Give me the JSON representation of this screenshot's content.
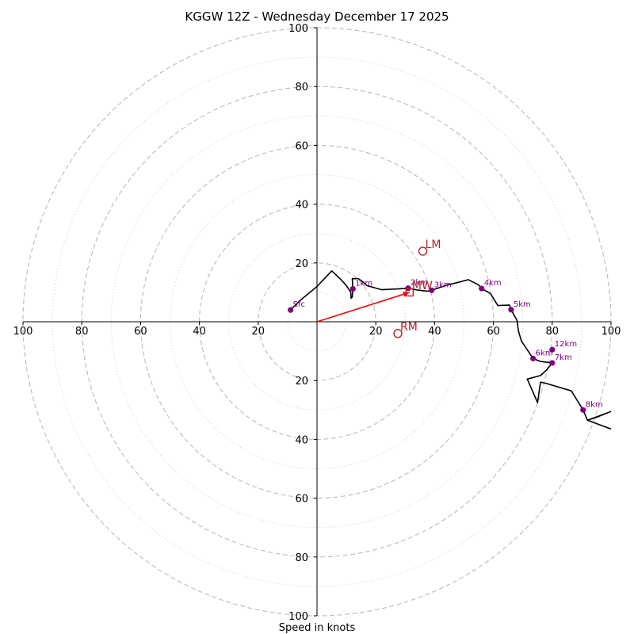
{
  "chart_data": {
    "type": "hodograph",
    "title": "KGGW 12Z - Wednesday December 17 2025",
    "xlabel": "Speed in knots",
    "ylabel": "",
    "xlim": [
      -100,
      100
    ],
    "ylim": [
      -100,
      100
    ],
    "ring_major": [
      20,
      40,
      60,
      80,
      100
    ],
    "ring_minor": [
      10,
      30,
      50,
      70,
      90
    ],
    "axis_tick_labels": [
      "100",
      "80",
      "60",
      "40",
      "20",
      "20",
      "40",
      "60",
      "80",
      "100"
    ],
    "colors": {
      "trace": "#000000",
      "height_marker": "#800080",
      "storm_motion": "#b22222",
      "shear_vector": "#ff0000",
      "grid": "#bbbbbb"
    },
    "trace_uv": [
      [
        -9,
        4
      ],
      [
        -6,
        7
      ],
      [
        0,
        12
      ],
      [
        5,
        17.3
      ],
      [
        8,
        14.5
      ],
      [
        10,
        12.3
      ],
      [
        11.5,
        10
      ],
      [
        11.6,
        8
      ],
      [
        12,
        8.4
      ],
      [
        12.2,
        11.2
      ],
      [
        12,
        14.6
      ],
      [
        14,
        14.7
      ],
      [
        15.3,
        13.8
      ],
      [
        17,
        12.3
      ],
      [
        22,
        10.9
      ],
      [
        28,
        11.2
      ],
      [
        31,
        11.4
      ],
      [
        34,
        10.8
      ],
      [
        37.5,
        10.4
      ],
      [
        39,
        10.7
      ],
      [
        44,
        12.4
      ],
      [
        48,
        13.4
      ],
      [
        51.5,
        14.3
      ],
      [
        55,
        12.5
      ],
      [
        56,
        11.3
      ],
      [
        59,
        9.6
      ],
      [
        61.5,
        5.5
      ],
      [
        65.5,
        5.7
      ],
      [
        66,
        4.1
      ],
      [
        68,
        0.5
      ],
      [
        68.5,
        -3
      ],
      [
        69.5,
        -6.5
      ],
      [
        73.5,
        -12.5
      ],
      [
        76,
        -13.5
      ],
      [
        80,
        -14
      ],
      [
        78,
        -16.5
      ],
      [
        76,
        -18.3
      ],
      [
        71.5,
        -19.5
      ],
      [
        75,
        -27.5
      ],
      [
        76,
        -20.5
      ],
      [
        78,
        -21
      ],
      [
        86.5,
        -23.5
      ],
      [
        90.5,
        -30
      ],
      [
        92,
        -33.5
      ],
      [
        95,
        -32.5
      ],
      [
        100,
        -30.5
      ],
      [
        92,
        -33.5
      ],
      [
        100,
        -36.5
      ]
    ],
    "height_points": [
      {
        "label": "Sfc",
        "u": -9,
        "v": 4
      },
      {
        "label": "1km",
        "u": 12.2,
        "v": 11.2
      },
      {
        "label": "2km",
        "u": 31,
        "v": 11.4
      },
      {
        "label": "3km",
        "u": 39,
        "v": 10.7
      },
      {
        "label": "4km",
        "u": 56,
        "v": 11.3
      },
      {
        "label": "5km",
        "u": 66,
        "v": 4.1
      },
      {
        "label": "6km",
        "u": 73.5,
        "v": -12.5
      },
      {
        "label": "7km",
        "u": 80,
        "v": -14
      },
      {
        "label": "8km",
        "u": 90.5,
        "v": -30
      },
      {
        "label": "12km",
        "u": 80,
        "v": -9.5
      }
    ],
    "storm_motion": {
      "LM": {
        "label": "LM",
        "u": 36,
        "v": 24
      },
      "RM": {
        "label": "RM",
        "u": 27.5,
        "v": -4
      },
      "MW": {
        "label": "MW",
        "u": 31.5,
        "v": 10
      }
    },
    "shear_vector": {
      "from": [
        0,
        0
      ],
      "to": [
        31.5,
        10
      ]
    }
  }
}
